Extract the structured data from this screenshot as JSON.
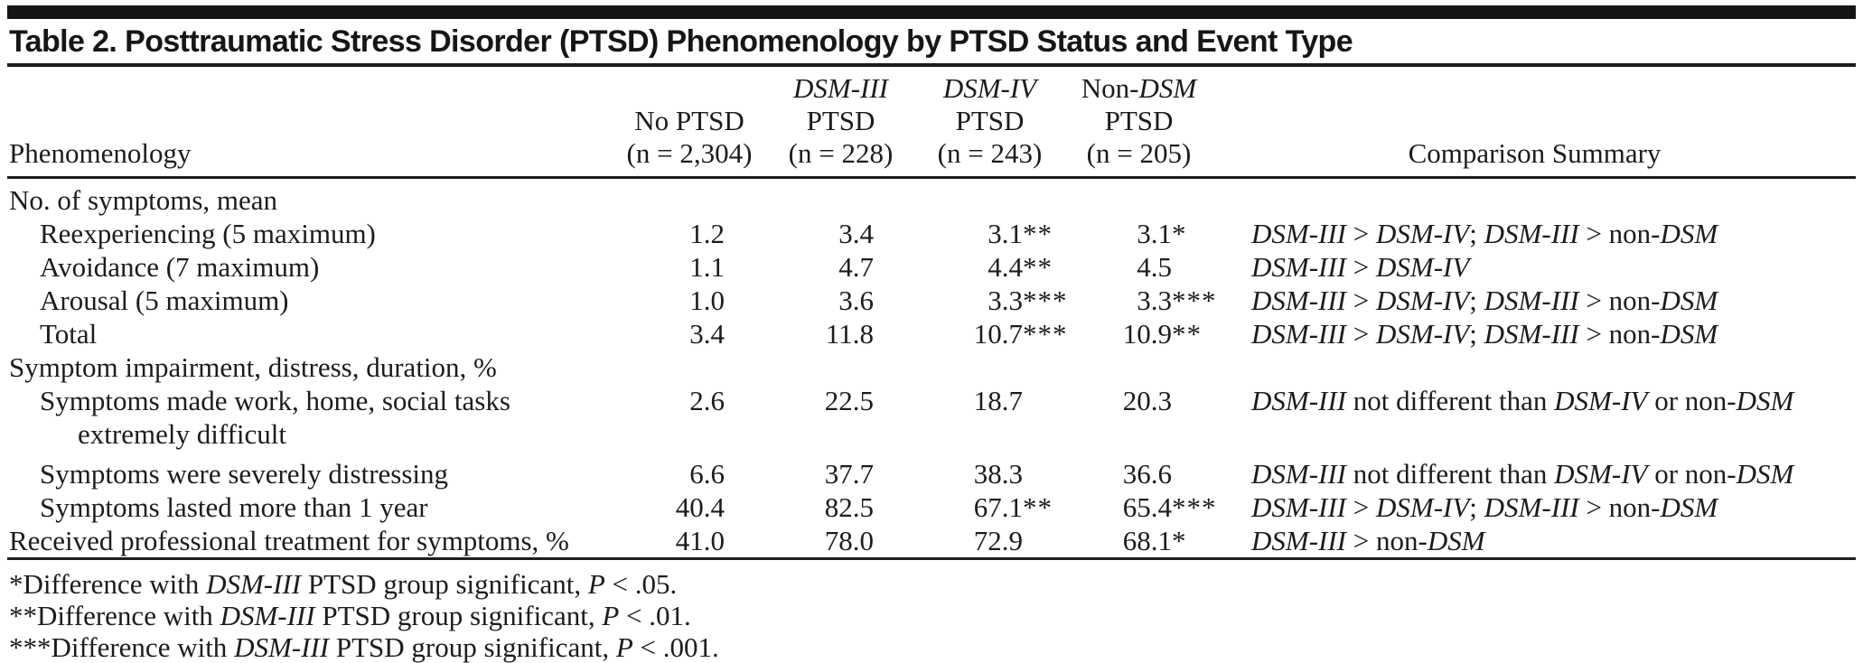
{
  "table": {
    "title": "Table 2. Posttraumatic Stress Disorder (PTSD) Phenomenology by PTSD Status and Event Type",
    "columns": {
      "phenomenology_label": "Phenomenology",
      "comparison_label": "Comparison Summary",
      "groups": [
        {
          "line1": [],
          "line2": "No PTSD",
          "line3": "(n = 2,304)"
        },
        {
          "line1": [
            {
              "t": "DSM-III",
              "i": true
            }
          ],
          "line2": "PTSD",
          "line3": "(n = 228)"
        },
        {
          "line1": [
            {
              "t": "DSM-IV",
              "i": true
            }
          ],
          "line2": "PTSD",
          "line3": "(n = 243)"
        },
        {
          "line1": [
            {
              "t": "Non-",
              "i": false
            },
            {
              "t": "DSM",
              "i": true
            }
          ],
          "line2": "PTSD",
          "line3": "(n = 205)"
        }
      ]
    },
    "rows": [
      {
        "type": "section",
        "indent": 0,
        "label": "No. of symptoms, mean"
      },
      {
        "type": "item",
        "indent": 1,
        "label": "Reexperiencing (5 maximum)",
        "values": [
          {
            "num": "1.2",
            "stars": ""
          },
          {
            "num": "3.4",
            "stars": ""
          },
          {
            "num": "3.1",
            "stars": "**"
          },
          {
            "num": "3.1",
            "stars": "*"
          }
        ],
        "comparison": [
          {
            "t": "DSM-III",
            "i": true
          },
          {
            "t": " > ",
            "i": false
          },
          {
            "t": "DSM-IV",
            "i": true
          },
          {
            "t": "; ",
            "i": false
          },
          {
            "t": "DSM-III",
            "i": true
          },
          {
            "t": " > non-",
            "i": false
          },
          {
            "t": "DSM",
            "i": true
          }
        ]
      },
      {
        "type": "item",
        "indent": 1,
        "label": "Avoidance (7 maximum)",
        "values": [
          {
            "num": "1.1",
            "stars": ""
          },
          {
            "num": "4.7",
            "stars": ""
          },
          {
            "num": "4.4",
            "stars": "**"
          },
          {
            "num": "4.5",
            "stars": ""
          }
        ],
        "comparison": [
          {
            "t": "DSM-III",
            "i": true
          },
          {
            "t": " > ",
            "i": false
          },
          {
            "t": "DSM-IV",
            "i": true
          }
        ]
      },
      {
        "type": "item",
        "indent": 1,
        "label": "Arousal (5 maximum)",
        "values": [
          {
            "num": "1.0",
            "stars": ""
          },
          {
            "num": "3.6",
            "stars": ""
          },
          {
            "num": "3.3",
            "stars": "***"
          },
          {
            "num": "3.3",
            "stars": "***"
          }
        ],
        "comparison": [
          {
            "t": "DSM-III",
            "i": true
          },
          {
            "t": " > ",
            "i": false
          },
          {
            "t": "DSM-IV",
            "i": true
          },
          {
            "t": "; ",
            "i": false
          },
          {
            "t": "DSM-III",
            "i": true
          },
          {
            "t": " > non-",
            "i": false
          },
          {
            "t": "DSM",
            "i": true
          }
        ]
      },
      {
        "type": "item",
        "indent": 1,
        "label": "Total",
        "values": [
          {
            "num": "3.4",
            "stars": ""
          },
          {
            "num": "11.8",
            "stars": ""
          },
          {
            "num": "10.7",
            "stars": "***"
          },
          {
            "num": "10.9",
            "stars": "**"
          }
        ],
        "comparison": [
          {
            "t": "DSM-III",
            "i": true
          },
          {
            "t": " > ",
            "i": false
          },
          {
            "t": "DSM-IV",
            "i": true
          },
          {
            "t": "; ",
            "i": false
          },
          {
            "t": "DSM-III",
            "i": true
          },
          {
            "t": " > non-",
            "i": false
          },
          {
            "t": "DSM",
            "i": true
          }
        ]
      },
      {
        "type": "section",
        "indent": 0,
        "label": "Symptom impairment, distress, duration, %"
      },
      {
        "type": "item",
        "indent": 1,
        "label": "Symptoms made work, home, social tasks",
        "label2": "extremely difficult",
        "values": [
          {
            "num": "2.6",
            "stars": ""
          },
          {
            "num": "22.5",
            "stars": ""
          },
          {
            "num": "18.7",
            "stars": ""
          },
          {
            "num": "20.3",
            "stars": ""
          }
        ],
        "comparison": [
          {
            "t": "DSM-III",
            "i": true
          },
          {
            "t": " not different than ",
            "i": false
          },
          {
            "t": "DSM-IV",
            "i": true
          },
          {
            "t": " or non-",
            "i": false
          },
          {
            "t": "DSM",
            "i": true
          }
        ]
      },
      {
        "type": "item",
        "indent": 1,
        "label": "Symptoms were severely distressing",
        "values": [
          {
            "num": "6.6",
            "stars": ""
          },
          {
            "num": "37.7",
            "stars": ""
          },
          {
            "num": "38.3",
            "stars": ""
          },
          {
            "num": "36.6",
            "stars": ""
          }
        ],
        "comparison": [
          {
            "t": "DSM-III",
            "i": true
          },
          {
            "t": " not different than ",
            "i": false
          },
          {
            "t": "DSM-IV",
            "i": true
          },
          {
            "t": " or non-",
            "i": false
          },
          {
            "t": "DSM",
            "i": true
          }
        ]
      },
      {
        "type": "item",
        "indent": 1,
        "label": "Symptoms lasted more than 1 year",
        "values": [
          {
            "num": "40.4",
            "stars": ""
          },
          {
            "num": "82.5",
            "stars": ""
          },
          {
            "num": "67.1",
            "stars": "**"
          },
          {
            "num": "65.4",
            "stars": "***"
          }
        ],
        "comparison": [
          {
            "t": "DSM-III",
            "i": true
          },
          {
            "t": " > ",
            "i": false
          },
          {
            "t": "DSM-IV",
            "i": true
          },
          {
            "t": "; ",
            "i": false
          },
          {
            "t": "DSM-III",
            "i": true
          },
          {
            "t": " > non-",
            "i": false
          },
          {
            "t": "DSM",
            "i": true
          }
        ]
      },
      {
        "type": "item",
        "indent": 0,
        "label": "Received professional treatment for symptoms, %",
        "values": [
          {
            "num": "41.0",
            "stars": ""
          },
          {
            "num": "78.0",
            "stars": ""
          },
          {
            "num": "72.9",
            "stars": ""
          },
          {
            "num": "68.1",
            "stars": "*"
          }
        ],
        "comparison": [
          {
            "t": "DSM-III",
            "i": true
          },
          {
            "t": " > non-",
            "i": false
          },
          {
            "t": "DSM",
            "i": true
          }
        ]
      }
    ],
    "footnotes": [
      [
        {
          "t": "*Difference with ",
          "i": false
        },
        {
          "t": "DSM-III",
          "i": true
        },
        {
          "t": " PTSD group significant, ",
          "i": false
        },
        {
          "t": "P",
          "i": true
        },
        {
          "t": " < .05.",
          "i": false
        }
      ],
      [
        {
          "t": "**Difference with ",
          "i": false
        },
        {
          "t": "DSM-III",
          "i": true
        },
        {
          "t": " PTSD group significant, ",
          "i": false
        },
        {
          "t": "P",
          "i": true
        },
        {
          "t": " < .01.",
          "i": false
        }
      ],
      [
        {
          "t": "***Difference with ",
          "i": false
        },
        {
          "t": "DSM-III",
          "i": true
        },
        {
          "t": " PTSD group significant, ",
          "i": false
        },
        {
          "t": "P",
          "i": true
        },
        {
          "t": " < .001.",
          "i": false
        }
      ]
    ]
  }
}
